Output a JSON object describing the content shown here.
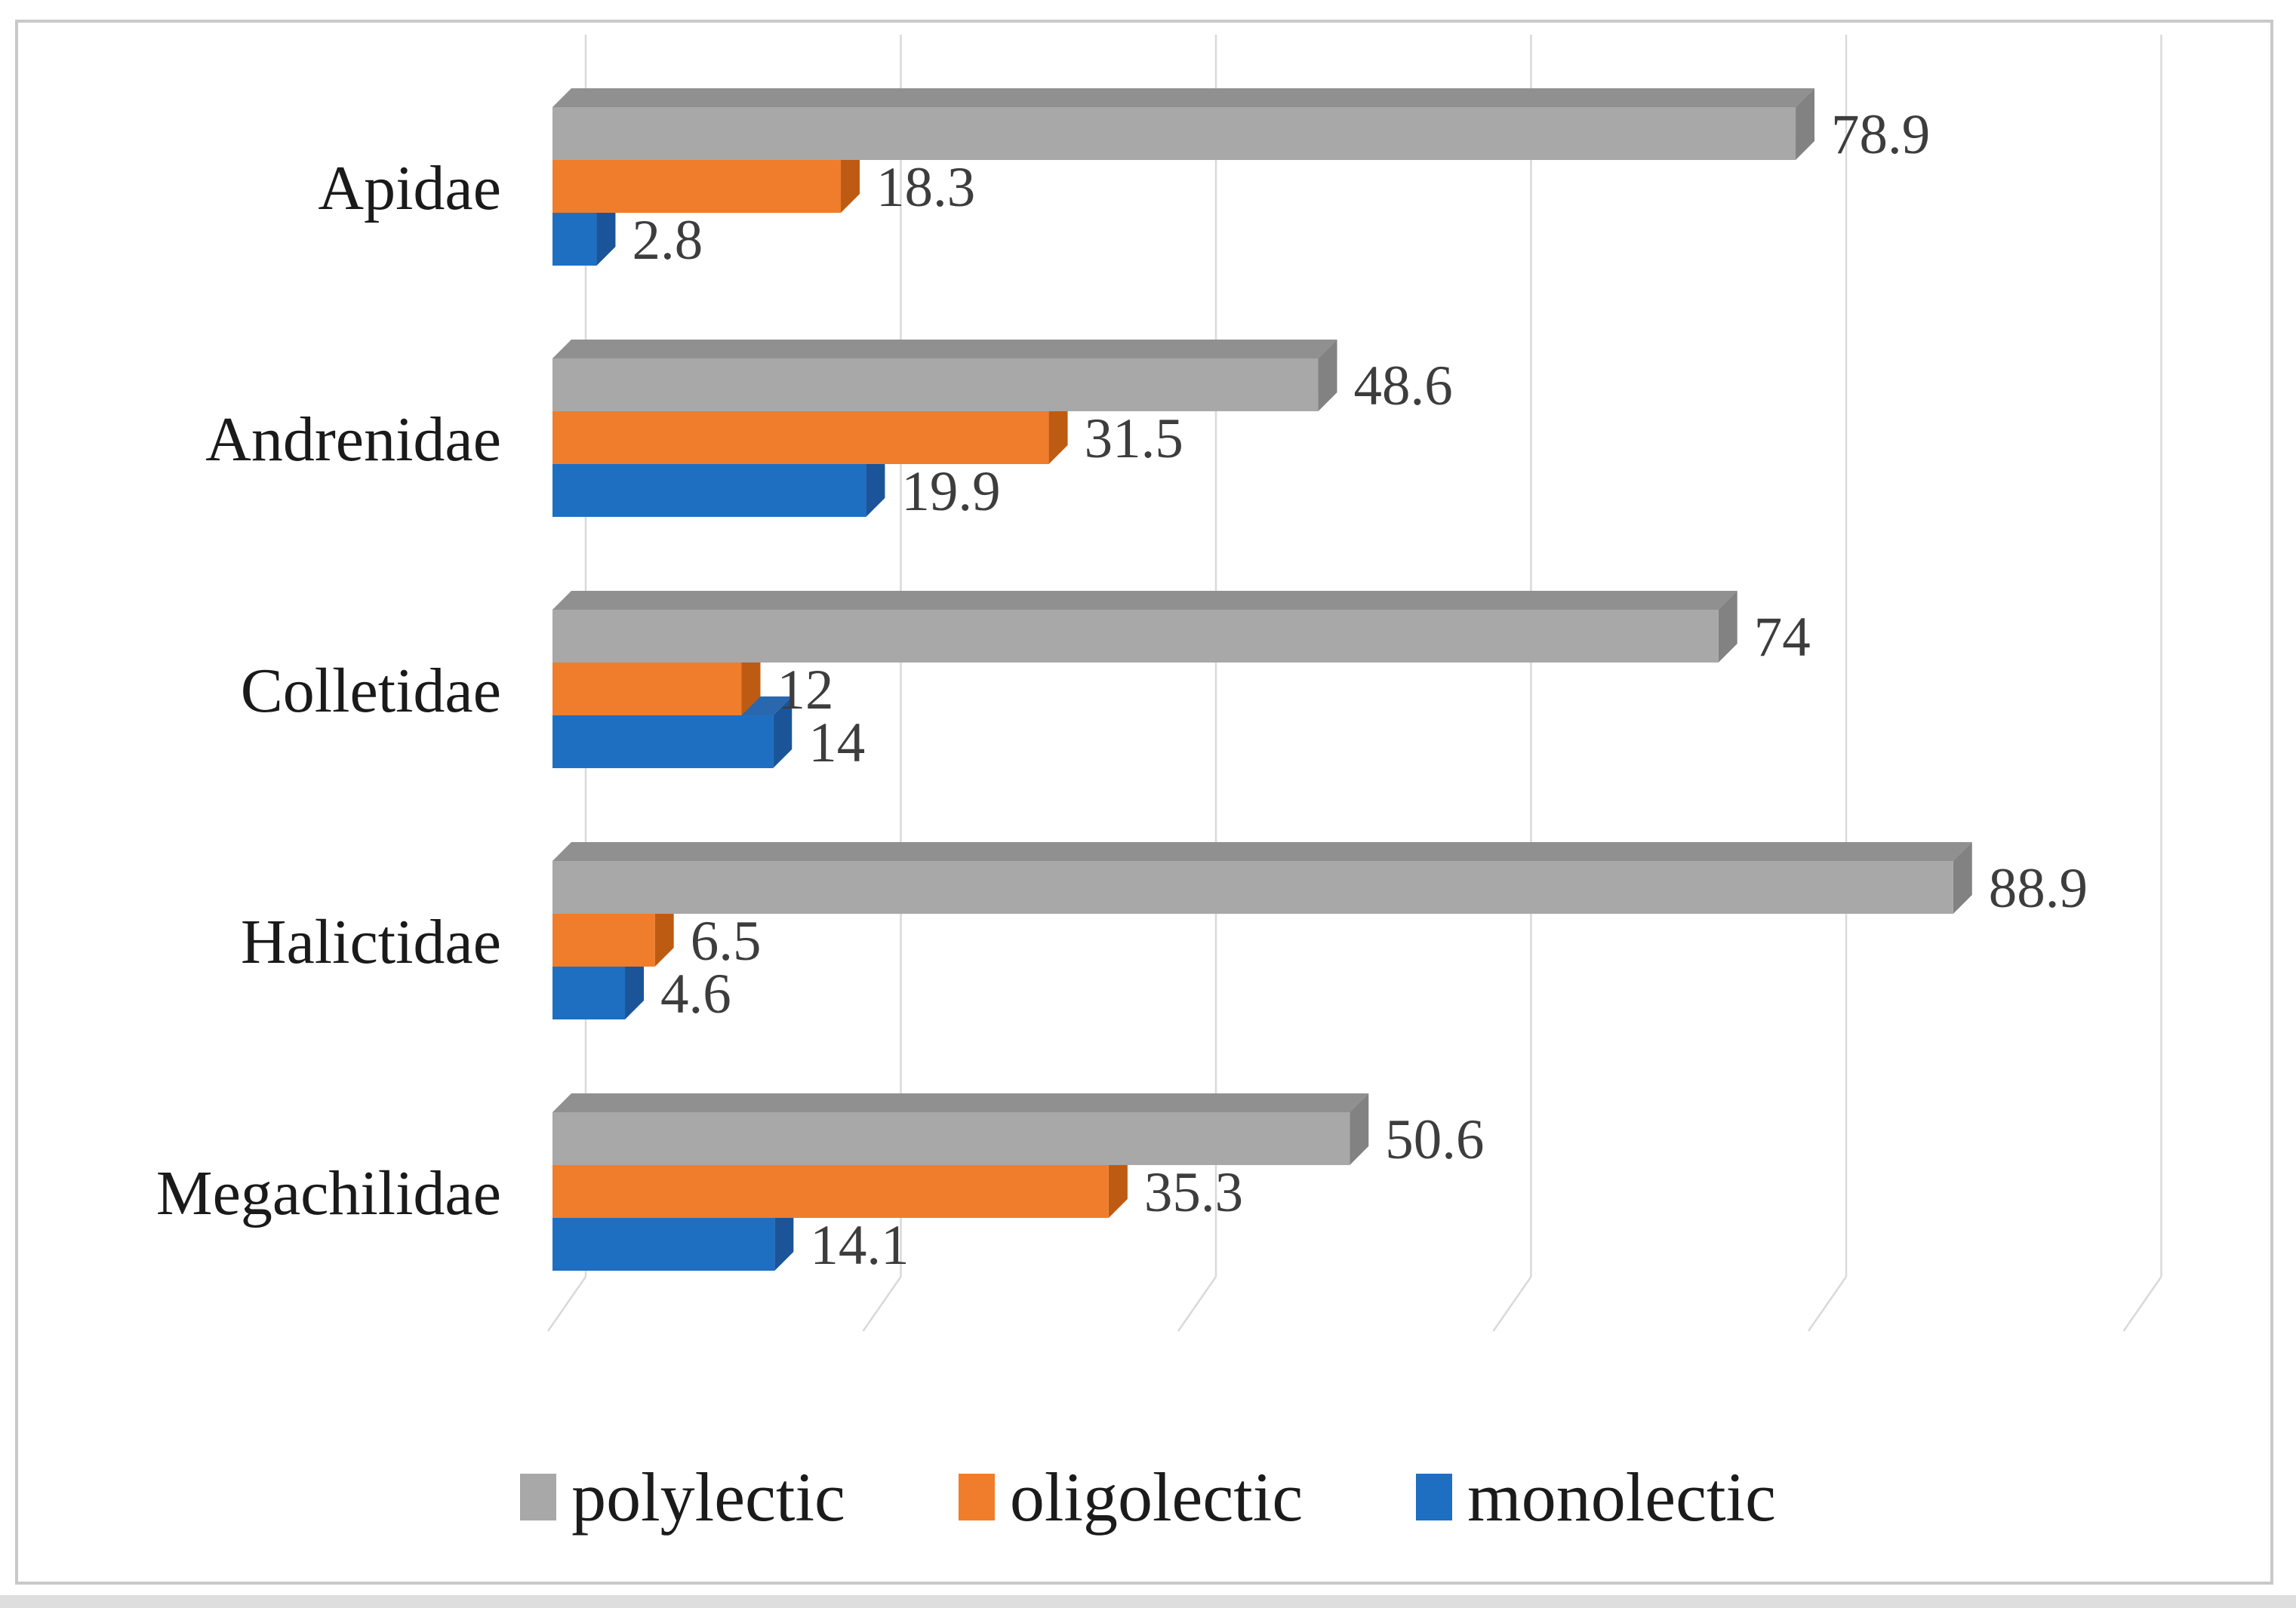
{
  "figure": {
    "frame_border_color": "#c9c9c9",
    "background_color": "#ffffff",
    "gridline_color": "#d9d9d9",
    "value_label_color": "#3d3d3d",
    "category_label_color": "#1a1a1a",
    "bottom_strip_color": "#dedede"
  },
  "chart_data": {
    "type": "bar",
    "orientation": "horizontal",
    "style": "3d",
    "title": "",
    "xlabel": "",
    "ylabel": "",
    "categories": [
      "Apidae",
      "Andrenidae",
      "Colletidae",
      "Halictidae",
      "Megachilidae"
    ],
    "series": [
      {
        "name": "polylectic",
        "color": "#a8a8a8",
        "color_top": "#909090",
        "color_side": "#828282",
        "values": [
          78.9,
          48.6,
          74,
          88.9,
          50.6
        ]
      },
      {
        "name": "oligolectic",
        "color": "#f07d2b",
        "color_top": "#d2691e",
        "color_side": "#be5b13",
        "values": [
          18.3,
          31.5,
          12,
          6.5,
          35.3
        ]
      },
      {
        "name": "monolectic",
        "color": "#1e6fc2",
        "color_top": "#2968af",
        "color_side": "#1b5499",
        "values": [
          2.8,
          19.9,
          14,
          4.6,
          14.1
        ]
      }
    ],
    "xlim": [
      0,
      100
    ],
    "gridlines": [
      0,
      20,
      40,
      60,
      80,
      100
    ],
    "gridline_interval": 20,
    "x_tick_labels_visible": false,
    "grid": true,
    "data_labels_visible": true,
    "legend_position": "bottom"
  }
}
